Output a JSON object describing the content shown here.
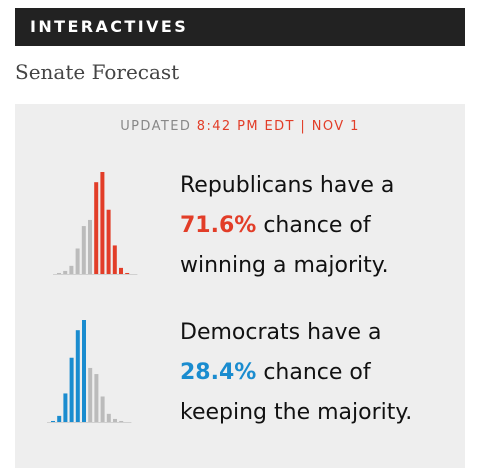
{
  "header": {
    "title": "INTERACTIVES"
  },
  "page": {
    "title": "Senate Forecast"
  },
  "updated": {
    "label": "UPDATED",
    "time": "8:42 PM EDT | NOV 1"
  },
  "republicans": {
    "line1": "Republicans have a",
    "pct": "71.6%",
    "line2_rest": " chance of",
    "line3": "winning a majority.",
    "color": "#e23d28"
  },
  "democrats": {
    "line1": "Democrats have a",
    "pct": "28.4%",
    "line2_rest": " chance of",
    "line3": "keeping the majority.",
    "color": "#1a8ccf"
  },
  "colors": {
    "header_bg": "#222222",
    "card_bg": "#eeeeee",
    "neutral_bar": "#bbbbbb"
  },
  "chart_data": [
    {
      "type": "bar",
      "name": "republican-seat-distribution",
      "bar_heights": [
        0.01,
        0.03,
        0.08,
        0.25,
        0.47,
        0.53,
        0.9,
        1.0,
        0.63,
        0.28,
        0.06,
        0.01
      ],
      "highlight_from": 6,
      "highlight_color": "#e23d28"
    },
    {
      "type": "bar",
      "name": "democrat-seat-distribution",
      "bar_heights": [
        0.01,
        0.06,
        0.28,
        0.63,
        0.9,
        1.0,
        0.53,
        0.47,
        0.25,
        0.08,
        0.03,
        0.01
      ],
      "highlight_to": 6,
      "highlight_color": "#1a8ccf"
    }
  ]
}
